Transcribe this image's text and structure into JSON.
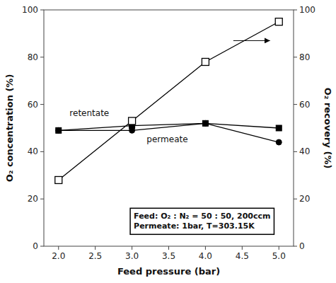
{
  "chart_data": {
    "type": "line",
    "x_label": "Feed pressure (bar)",
    "y_label": "O₂ concentration (%)",
    "y2_label": "O₂ recovery (%)",
    "x": [
      2.0,
      3.0,
      4.0,
      5.0
    ],
    "series": [
      {
        "color": "#000000",
        "marker": "square",
        "values": [
          49,
          51,
          52,
          50
        ]
      },
      {
        "color": "#000000",
        "marker": "circle",
        "values": [
          49,
          49,
          52,
          44
        ]
      },
      {
        "color": "#000000",
        "marker": "open-square",
        "axis": "y2",
        "values": [
          28,
          53,
          78,
          95
        ]
      }
    ],
    "xlim": [
      1.8,
      5.2
    ],
    "xticks": [
      {
        "value": 2,
        "label": "2.0"
      },
      2.5,
      {
        "value": 3,
        "label": "3.0"
      },
      3.5,
      {
        "value": 4,
        "label": "4.0"
      },
      4.5,
      {
        "value": 5,
        "label": "5.0"
      }
    ],
    "ylim": [
      0,
      100
    ],
    "yticks": [
      0,
      20,
      40,
      60,
      80,
      100
    ],
    "y2lim": [
      0,
      100
    ],
    "y2ticks": [
      0,
      20,
      40,
      60,
      80,
      100
    ],
    "grid": false,
    "annotations": [
      {
        "text": "retentate",
        "x": 2.15,
        "y": 56
      },
      {
        "text": "permeate",
        "x": 3.2,
        "y": 45
      },
      {
        "text": "Feed: O₂ : N₂ = 50 : 50, 200ccm\nPermeate: 1bar, T=303.15K"
      },
      {
        "type": "arrow",
        "x": [
          4.38,
          4.88
        ],
        "y": 87,
        "axis": "y2"
      }
    ]
  }
}
